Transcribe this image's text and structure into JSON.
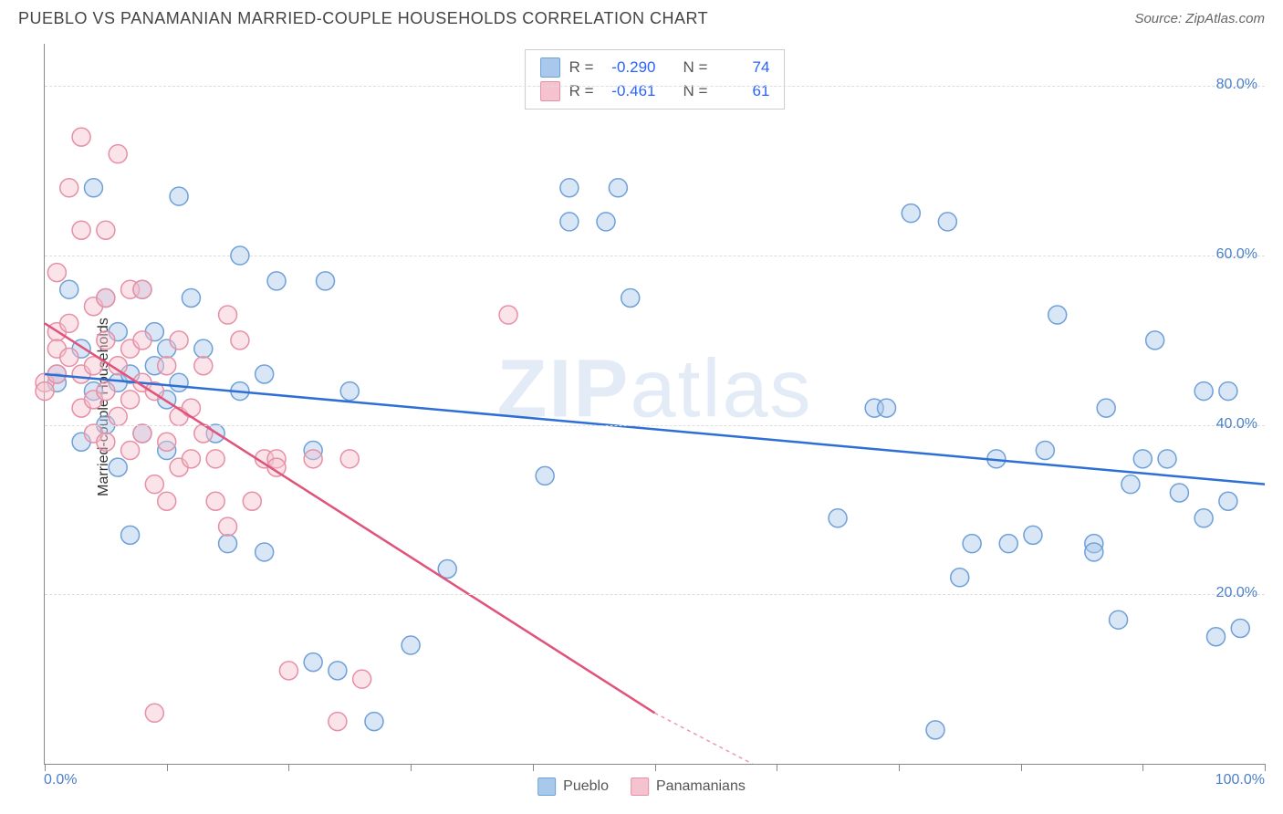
{
  "title": "PUEBLO VS PANAMANIAN MARRIED-COUPLE HOUSEHOLDS CORRELATION CHART",
  "source": "Source: ZipAtlas.com",
  "watermark_a": "ZIP",
  "watermark_b": "atlas",
  "ylabel": "Married-couple Households",
  "x_min_label": "0.0%",
  "x_max_label": "100.0%",
  "ytick_labels": [
    "20.0%",
    "40.0%",
    "60.0%",
    "80.0%"
  ],
  "x_ticks": [
    0,
    10,
    20,
    30,
    40,
    50,
    60,
    70,
    80,
    90,
    100
  ],
  "chart": {
    "type": "scatter",
    "xlim": [
      0,
      100
    ],
    "ylim": [
      0,
      85
    ],
    "grid_y": [
      20,
      40,
      60,
      80
    ],
    "grid_color": "#dddddd",
    "background_color": "#ffffff",
    "marker_radius": 10,
    "marker_opacity": 0.45,
    "series": [
      {
        "name": "Pueblo",
        "fill": "#a8c8ec",
        "stroke": "#6fa0d8",
        "reg_color": "#2d6fd4",
        "reg_start": [
          0,
          46
        ],
        "reg_end": [
          100,
          33
        ],
        "R": "-0.290",
        "N": "74",
        "points": [
          [
            1,
            45
          ],
          [
            1,
            46
          ],
          [
            2,
            56
          ],
          [
            3,
            38
          ],
          [
            3,
            49
          ],
          [
            4,
            68
          ],
          [
            4,
            44
          ],
          [
            5,
            55
          ],
          [
            5,
            40
          ],
          [
            6,
            45
          ],
          [
            6,
            51
          ],
          [
            6,
            35
          ],
          [
            7,
            46
          ],
          [
            7,
            27
          ],
          [
            8,
            56
          ],
          [
            8,
            39
          ],
          [
            9,
            51
          ],
          [
            9,
            47
          ],
          [
            10,
            49
          ],
          [
            10,
            43
          ],
          [
            10,
            37
          ],
          [
            11,
            45
          ],
          [
            11,
            67
          ],
          [
            12,
            55
          ],
          [
            13,
            49
          ],
          [
            14,
            39
          ],
          [
            15,
            26
          ],
          [
            16,
            44
          ],
          [
            16,
            60
          ],
          [
            18,
            46
          ],
          [
            18,
            25
          ],
          [
            19,
            57
          ],
          [
            22,
            37
          ],
          [
            22,
            12
          ],
          [
            23,
            57
          ],
          [
            24,
            11
          ],
          [
            25,
            44
          ],
          [
            27,
            5
          ],
          [
            30,
            14
          ],
          [
            33,
            23
          ],
          [
            41,
            34
          ],
          [
            43,
            64
          ],
          [
            43,
            68
          ],
          [
            46,
            64
          ],
          [
            47,
            68
          ],
          [
            48,
            55
          ],
          [
            65,
            29
          ],
          [
            68,
            42
          ],
          [
            69,
            42
          ],
          [
            71,
            65
          ],
          [
            73,
            4
          ],
          [
            74,
            64
          ],
          [
            75,
            22
          ],
          [
            76,
            26
          ],
          [
            78,
            36
          ],
          [
            79,
            26
          ],
          [
            81,
            27
          ],
          [
            82,
            37
          ],
          [
            83,
            53
          ],
          [
            86,
            26
          ],
          [
            86,
            25
          ],
          [
            87,
            42
          ],
          [
            88,
            17
          ],
          [
            89,
            33
          ],
          [
            90,
            36
          ],
          [
            91,
            50
          ],
          [
            92,
            36
          ],
          [
            93,
            32
          ],
          [
            95,
            44
          ],
          [
            95,
            29
          ],
          [
            96,
            15
          ],
          [
            97,
            31
          ],
          [
            97,
            44
          ],
          [
            98,
            16
          ]
        ]
      },
      {
        "name": "Panamanians",
        "fill": "#f5c3cf",
        "stroke": "#e78fa5",
        "reg_color": "#e0537a",
        "reg_start": [
          0,
          52
        ],
        "reg_end": [
          50,
          6
        ],
        "reg_dash_end": [
          58,
          0
        ],
        "R": "-0.461",
        "N": "61",
        "points": [
          [
            0,
            45
          ],
          [
            0,
            44
          ],
          [
            1,
            46
          ],
          [
            1,
            58
          ],
          [
            1,
            51
          ],
          [
            1,
            49
          ],
          [
            2,
            68
          ],
          [
            2,
            52
          ],
          [
            2,
            48
          ],
          [
            3,
            63
          ],
          [
            3,
            46
          ],
          [
            3,
            42
          ],
          [
            3,
            74
          ],
          [
            4,
            54
          ],
          [
            4,
            47
          ],
          [
            4,
            43
          ],
          [
            4,
            39
          ],
          [
            5,
            63
          ],
          [
            5,
            55
          ],
          [
            5,
            50
          ],
          [
            5,
            44
          ],
          [
            5,
            38
          ],
          [
            6,
            47
          ],
          [
            6,
            41
          ],
          [
            6,
            72
          ],
          [
            7,
            56
          ],
          [
            7,
            49
          ],
          [
            7,
            43
          ],
          [
            7,
            37
          ],
          [
            8,
            56
          ],
          [
            8,
            50
          ],
          [
            8,
            45
          ],
          [
            8,
            39
          ],
          [
            9,
            44
          ],
          [
            9,
            33
          ],
          [
            9,
            6
          ],
          [
            10,
            47
          ],
          [
            10,
            38
          ],
          [
            10,
            31
          ],
          [
            11,
            50
          ],
          [
            11,
            41
          ],
          [
            11,
            35
          ],
          [
            12,
            42
          ],
          [
            12,
            36
          ],
          [
            13,
            47
          ],
          [
            13,
            39
          ],
          [
            14,
            36
          ],
          [
            14,
            31
          ],
          [
            15,
            53
          ],
          [
            15,
            28
          ],
          [
            16,
            50
          ],
          [
            17,
            31
          ],
          [
            18,
            36
          ],
          [
            19,
            36
          ],
          [
            19,
            35
          ],
          [
            20,
            11
          ],
          [
            22,
            36
          ],
          [
            24,
            5
          ],
          [
            25,
            36
          ],
          [
            26,
            10
          ],
          [
            38,
            53
          ]
        ]
      }
    ]
  },
  "legend": {
    "series1_label": "Pueblo",
    "series2_label": "Panamanians"
  },
  "stats_labels": {
    "R": "R =",
    "N": "N ="
  }
}
